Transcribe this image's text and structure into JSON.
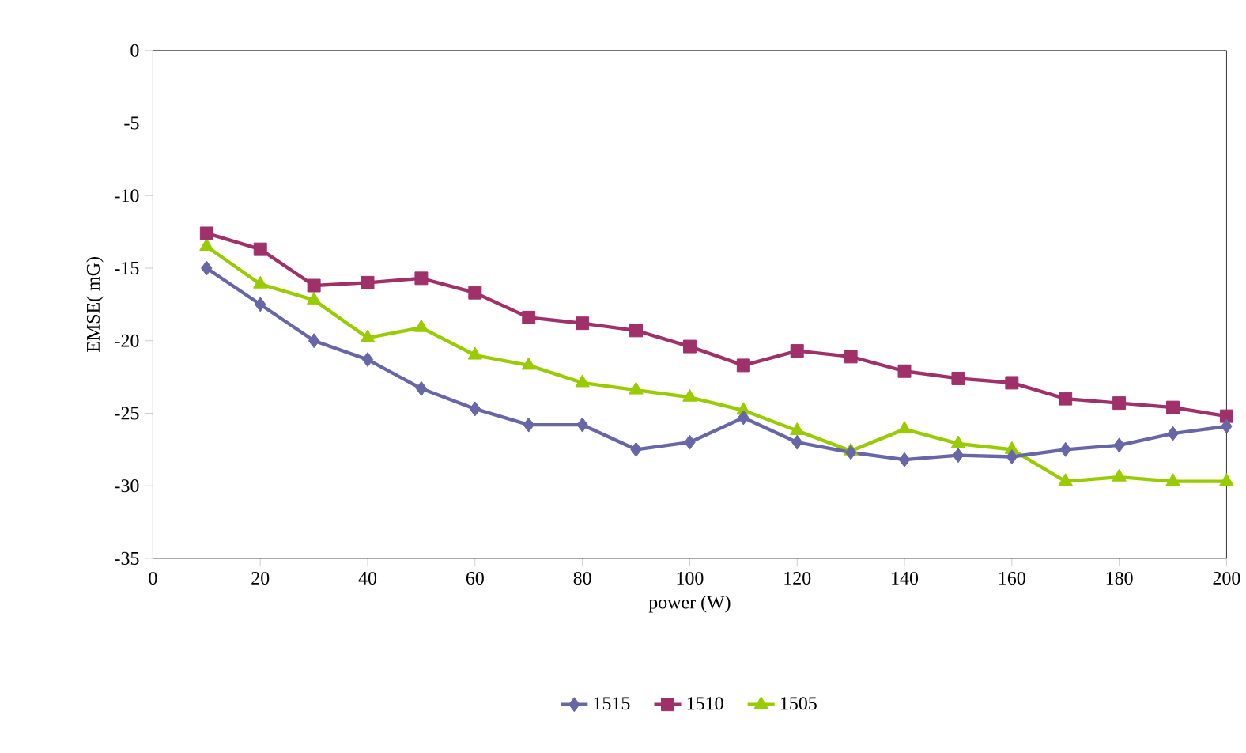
{
  "chart_data": {
    "type": "line",
    "xlabel": "power (W)",
    "ylabel": "EMSE( mG)",
    "x": [
      10,
      20,
      30,
      40,
      50,
      60,
      70,
      80,
      90,
      100,
      110,
      120,
      130,
      140,
      150,
      160,
      170,
      180,
      190,
      200
    ],
    "series": [
      {
        "name": "1515",
        "color": "#6666a8",
        "marker": "diamond",
        "values": [
          -15.0,
          -17.5,
          -20.0,
          -21.3,
          -23.3,
          -24.7,
          -25.8,
          -25.8,
          -27.5,
          -27.0,
          -25.3,
          -27.0,
          -27.7,
          -28.2,
          -27.9,
          -28.0,
          -27.5,
          -27.2,
          -26.4,
          -25.9
        ]
      },
      {
        "name": "1510",
        "color": "#a0306a",
        "marker": "square",
        "values": [
          -12.6,
          -13.7,
          -16.2,
          -16.0,
          -15.7,
          -16.7,
          -18.4,
          -18.8,
          -19.3,
          -20.4,
          -21.7,
          -20.7,
          -21.1,
          -22.1,
          -22.6,
          -22.9,
          -24.0,
          -24.3,
          -24.6,
          -25.2
        ]
      },
      {
        "name": "1505",
        "color": "#99cc00",
        "marker": "triangle",
        "values": [
          -13.5,
          -16.1,
          -17.2,
          -19.8,
          -19.1,
          -21.0,
          -21.7,
          -22.9,
          -23.4,
          -23.9,
          -24.8,
          -26.2,
          -27.6,
          -26.1,
          -27.1,
          -27.5,
          -29.7,
          -29.4,
          -29.7,
          -29.7
        ]
      }
    ],
    "xlim": [
      0,
      200
    ],
    "ylim": [
      -35,
      0
    ],
    "xticks": [
      0,
      20,
      40,
      60,
      80,
      100,
      120,
      140,
      160,
      180,
      200
    ],
    "yticks": [
      -35,
      -30,
      -25,
      -20,
      -15,
      -10,
      -5,
      0
    ],
    "grid": false,
    "legend": "bottom"
  }
}
